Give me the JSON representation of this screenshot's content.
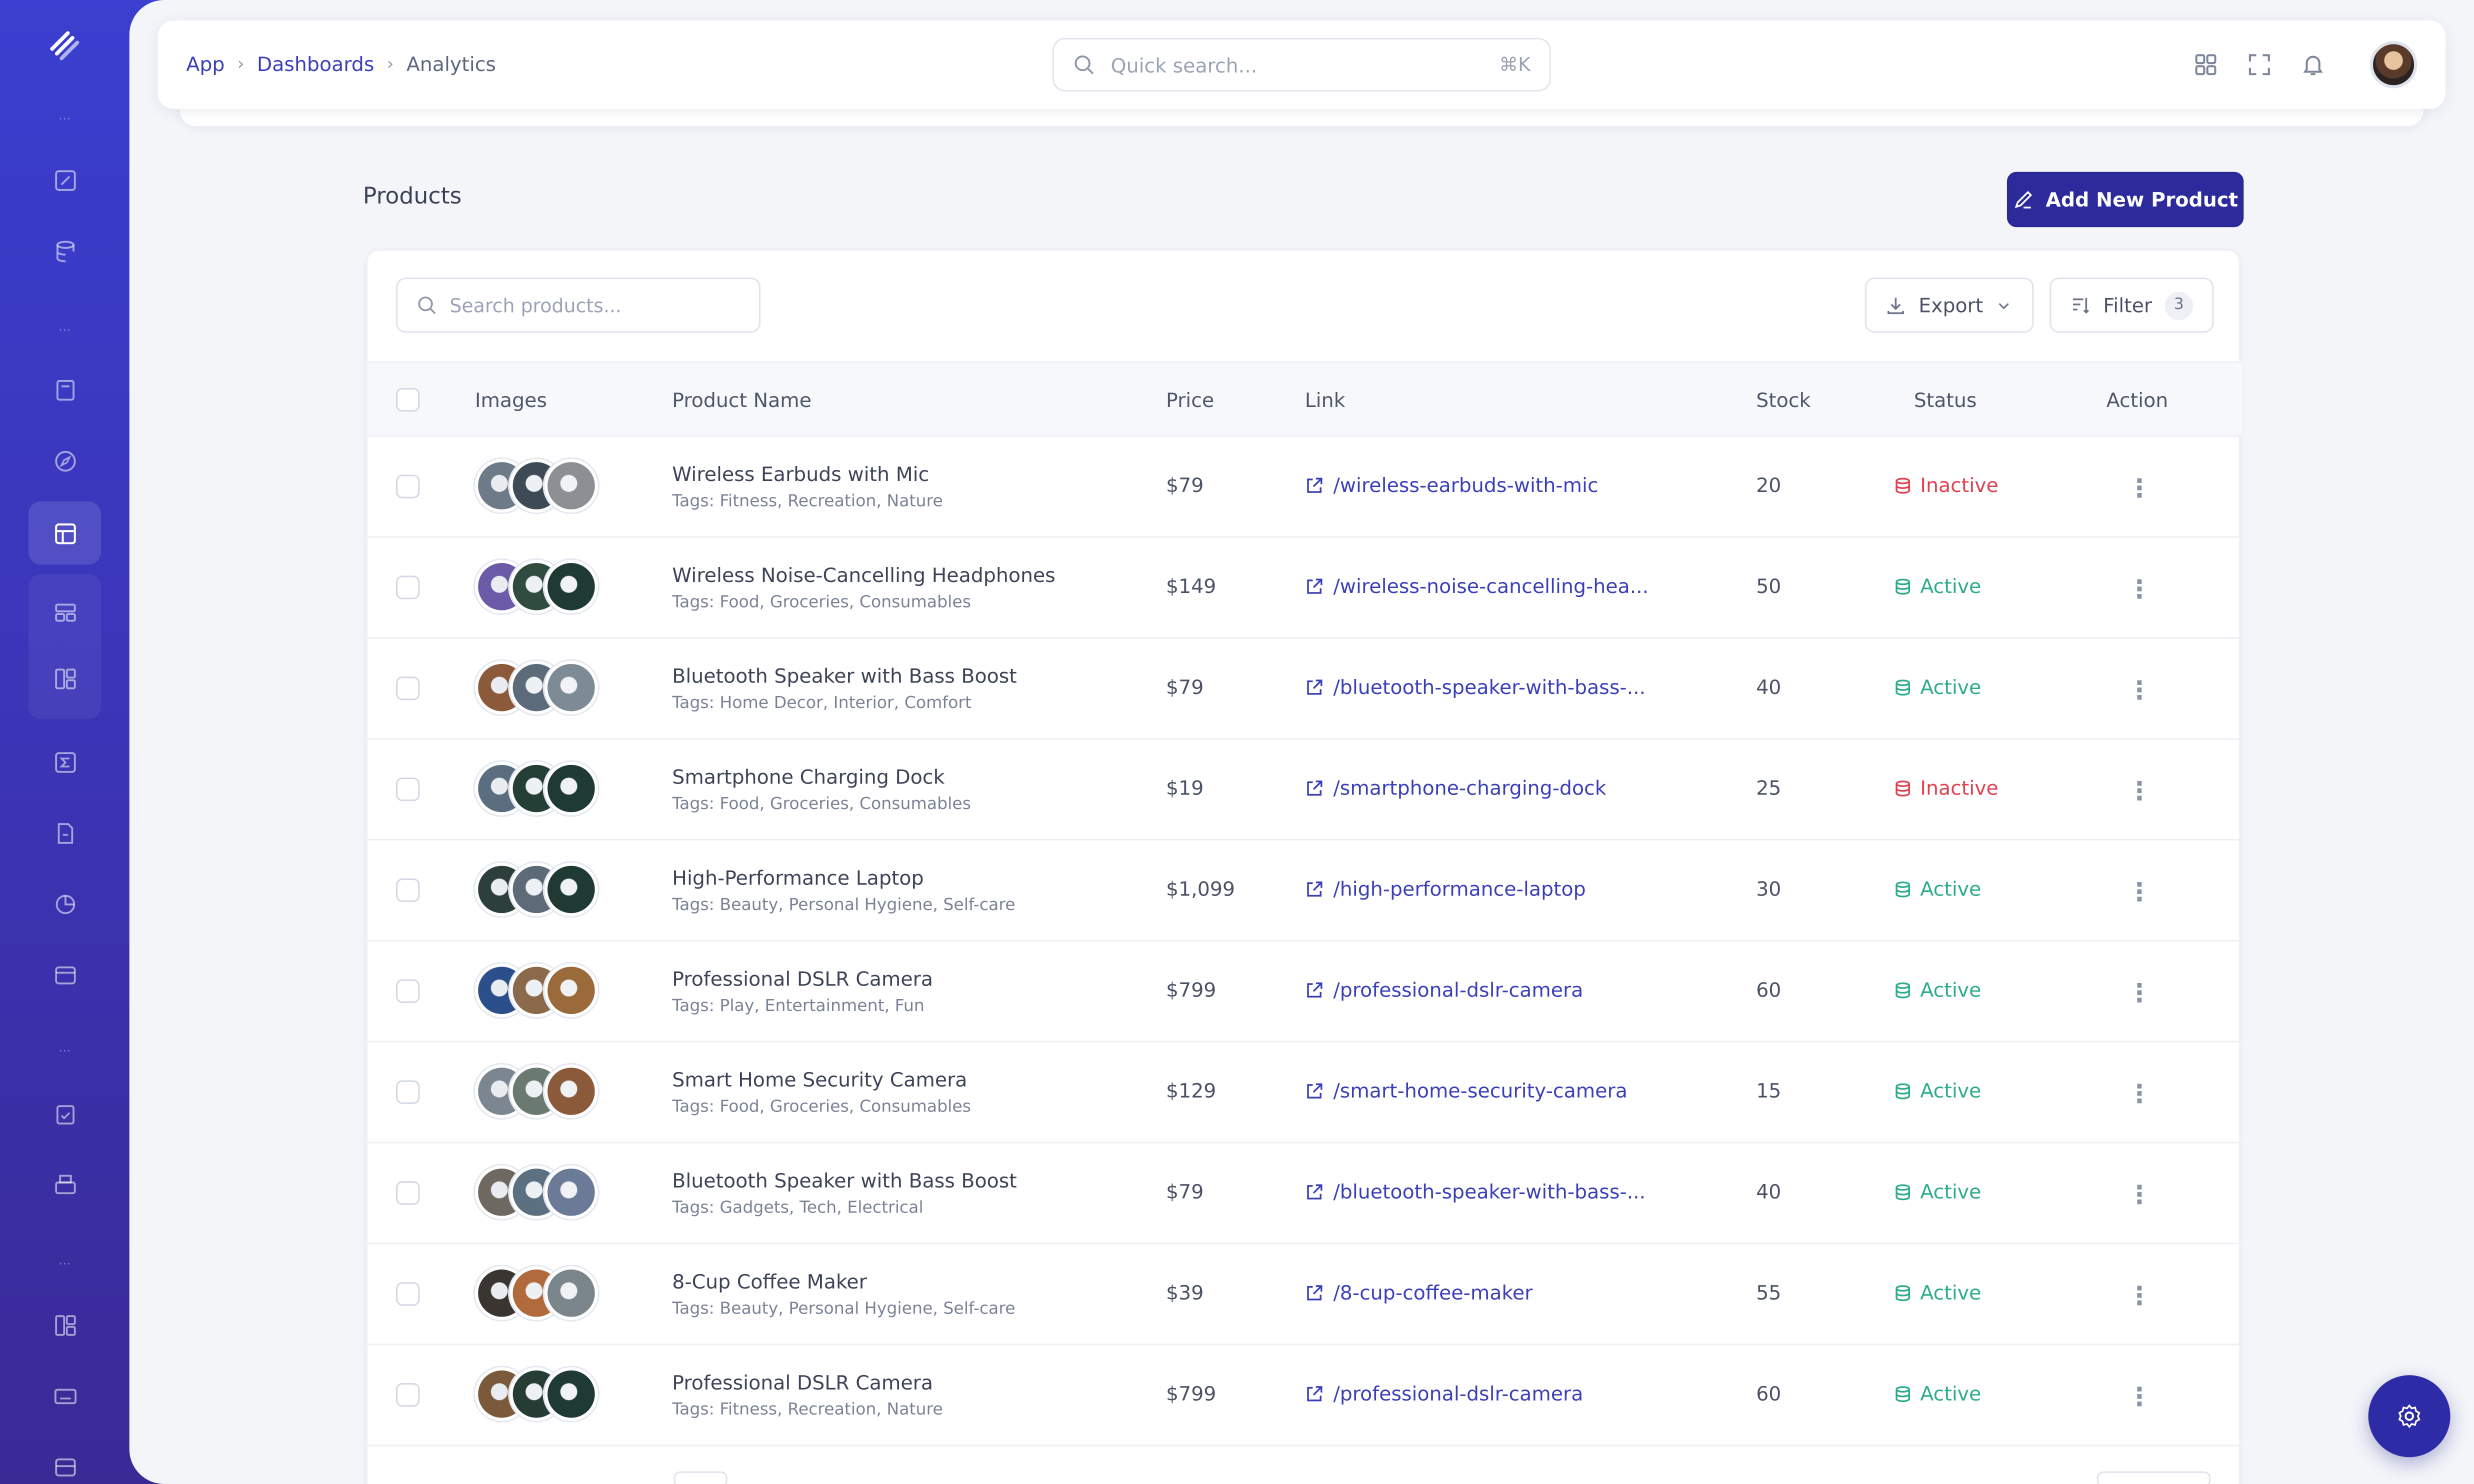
{
  "colors": {
    "sidebar": "#3a3fcf",
    "accent": "#2d2a9c",
    "link": "#3a3fb8",
    "active": "#2bab8a",
    "inactive": "#e0404f"
  },
  "breadcrumb": [
    "App",
    "Dashboards",
    "Analytics"
  ],
  "quick_search": {
    "placeholder": "Quick search...",
    "shortcut": "⌘K"
  },
  "topbar_icons": [
    "apps-grid-icon",
    "fullscreen-icon",
    "bell-icon",
    "user-avatar"
  ],
  "page": {
    "title": "Products",
    "add_button": "Add New Product"
  },
  "toolbar": {
    "search_placeholder": "Search products...",
    "export_label": "Export",
    "filter_label": "Filter",
    "filter_count": "3"
  },
  "table": {
    "columns": [
      "Images",
      "Product Name",
      "Price",
      "Link",
      "Stock",
      "Status",
      "Action"
    ],
    "rows": [
      {
        "name": "Wireless Earbuds with Mic",
        "tags": "Tags: Fitness, Recreation, Nature",
        "price": "$79",
        "link": "/wireless-earbuds-with-mic",
        "stock": "20",
        "status": "Inactive"
      },
      {
        "name": "Wireless Noise-Cancelling Headphones",
        "tags": "Tags: Food, Groceries, Consumables",
        "price": "$149",
        "link": "/wireless-noise-cancelling-hea...",
        "stock": "50",
        "status": "Active"
      },
      {
        "name": "Bluetooth Speaker with Bass Boost",
        "tags": "Tags: Home Decor, Interior, Comfort",
        "price": "$79",
        "link": "/bluetooth-speaker-with-bass-...",
        "stock": "40",
        "status": "Active"
      },
      {
        "name": "Smartphone Charging Dock",
        "tags": "Tags: Food, Groceries, Consumables",
        "price": "$19",
        "link": "/smartphone-charging-dock",
        "stock": "25",
        "status": "Inactive"
      },
      {
        "name": "High-Performance Laptop",
        "tags": "Tags: Beauty, Personal Hygiene, Self-care",
        "price": "$1,099",
        "link": "/high-performance-laptop",
        "stock": "30",
        "status": "Active"
      },
      {
        "name": "Professional DSLR Camera",
        "tags": "Tags: Play, Entertainment, Fun",
        "price": "$799",
        "link": "/professional-dslr-camera",
        "stock": "60",
        "status": "Active"
      },
      {
        "name": "Smart Home Security Camera",
        "tags": "Tags: Food, Groceries, Consumables",
        "price": "$129",
        "link": "/smart-home-security-camera",
        "stock": "15",
        "status": "Active"
      },
      {
        "name": "Bluetooth Speaker with Bass Boost",
        "tags": "Tags: Gadgets, Tech, Electrical",
        "price": "$79",
        "link": "/bluetooth-speaker-with-bass-...",
        "stock": "40",
        "status": "Active"
      },
      {
        "name": "8-Cup Coffee Maker",
        "tags": "Tags: Beauty, Personal Hygiene, Self-care",
        "price": "$39",
        "link": "/8-cup-coffee-maker",
        "stock": "55",
        "status": "Active"
      },
      {
        "name": "Professional DSLR Camera",
        "tags": "Tags: Fitness, Recreation, Nature",
        "price": "$799",
        "link": "/professional-dslr-camera",
        "stock": "60",
        "status": "Active"
      }
    ]
  },
  "sidebar_icons": [
    "edit-icon",
    "database-icon",
    "book-icon",
    "compass-icon",
    "table-icon",
    "layout-icon",
    "dashboard-icon",
    "sigma-icon",
    "file-icon",
    "chart-pie-icon",
    "window-icon",
    "clipboard-icon",
    "printer-icon",
    "grid-icon",
    "keyboard-icon",
    "archive-icon"
  ],
  "fab_icon": "settings-icon"
}
